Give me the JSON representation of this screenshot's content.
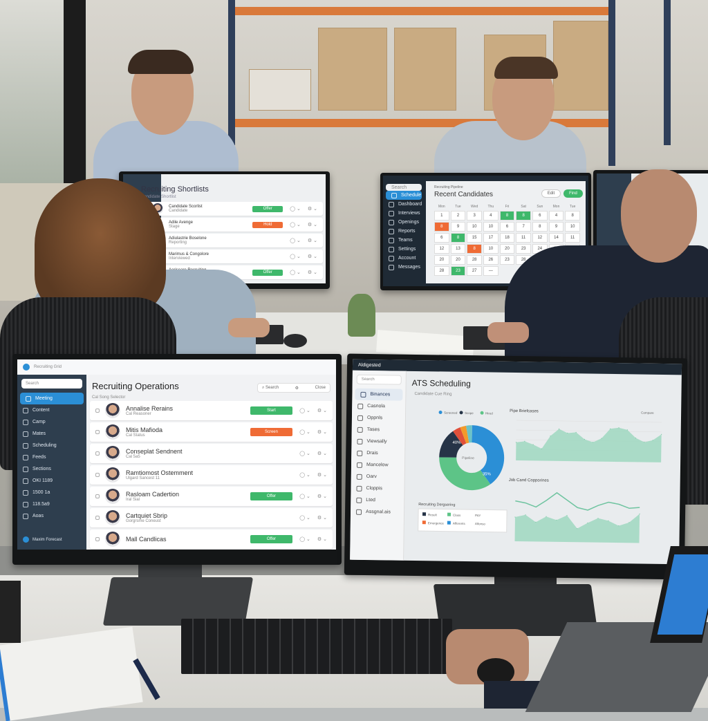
{
  "scene": {
    "colors": {
      "shelf": "#d9793a",
      "accent": "#2b8fd6",
      "green": "#3fb86b",
      "orange": "#ef6b35",
      "navy": "#2e3e4e"
    }
  },
  "front_left": {
    "app_name": "Recruiting Grid",
    "search_placeholder": "Search",
    "nav": [
      {
        "label": "Meeting",
        "active": true
      },
      {
        "label": "Content"
      },
      {
        "label": "Camp"
      },
      {
        "label": "Mates"
      },
      {
        "label": "Scheduling"
      },
      {
        "label": "Feeds"
      },
      {
        "label": "Sections"
      },
      {
        "label": "OKI 1189"
      },
      {
        "label": "1500 1a"
      },
      {
        "label": "118.5a9"
      },
      {
        "label": "Aoas"
      }
    ],
    "user": "Maxim Forecast",
    "title": "Recruiting Operations",
    "subtitle": "Cal Song Selector",
    "toolbar": {
      "search": "Search",
      "close": "Close"
    },
    "rows": [
      {
        "name": "Annalise Rerains",
        "sub": "Cal Reasoner",
        "status": "Start",
        "color": "green"
      },
      {
        "name": "Mitis Mafioda",
        "sub": "Cal Status",
        "status": "Screen",
        "color": "orange"
      },
      {
        "name": "Conseplat Sendnent",
        "sub": "Cal 5a5",
        "status": "",
        "color": ""
      },
      {
        "name": "Ramtiomost Ostemment",
        "sub": "Ulgard Sancest 11",
        "status": "",
        "color": ""
      },
      {
        "name": "Rasloam Cadertion",
        "sub": "Iral Sial",
        "status": "Offer",
        "color": "green"
      },
      {
        "name": "Cartquiet Sbrip",
        "sub": "Gorgrsme Coneust",
        "status": "",
        "color": ""
      },
      {
        "name": "Mall Candlicas",
        "sub": "",
        "status": "Offer",
        "color": "green"
      }
    ]
  },
  "front_right": {
    "app_name": "Aldigested",
    "search_placeholder": "Search",
    "nav": [
      {
        "label": "Binances",
        "active": true
      },
      {
        "label": "Casnola"
      },
      {
        "label": "Oppnls"
      },
      {
        "label": "Tases"
      },
      {
        "label": "Viewsally"
      },
      {
        "label": "Drais"
      },
      {
        "label": "Mancelow"
      },
      {
        "label": "Oarv"
      },
      {
        "label": "Cloppis"
      },
      {
        "label": "Lted"
      },
      {
        "label": "Assgnal.ais"
      }
    ],
    "title": "ATS Scheduling",
    "subtitle": "Candidate Cue Ring",
    "donut": {
      "legend": [
        "Screened",
        "Scope",
        "Hired"
      ],
      "center": "Pipeline",
      "labels": [
        "40%",
        "35%"
      ],
      "slices": [
        {
          "value": 40,
          "color": "#2b8fd6"
        },
        {
          "value": 35,
          "color": "#5dc487"
        },
        {
          "value": 15,
          "color": "#263447"
        },
        {
          "value": 4,
          "color": "#e0503a"
        },
        {
          "value": 3,
          "color": "#f39a2b"
        },
        {
          "value": 3,
          "color": "#6cc3c8"
        }
      ]
    },
    "chart1": {
      "title": "Pipe Briefcases",
      "legend": "Compare",
      "values": [
        45,
        48,
        40,
        30,
        62,
        80,
        70,
        72,
        55,
        48,
        58,
        82,
        85,
        80,
        60,
        50,
        55,
        70
      ]
    },
    "chart2": {
      "title": "Job Cand Copporines",
      "line": [
        62,
        58,
        50,
        64,
        80,
        65,
        50,
        45,
        55,
        62,
        58,
        50,
        52
      ],
      "area": [
        50,
        55,
        40,
        52,
        45,
        55,
        28,
        40,
        50,
        45,
        35,
        42,
        60
      ]
    },
    "legend_box": {
      "title": "Recruiting Dergsering",
      "items": [
        "Result",
        "Class",
        "Emergence",
        "Afferents"
      ],
      "col3": [
        "PAY",
        "Alfonso"
      ]
    }
  },
  "back_left": {
    "title": "Recruiting Shortlists",
    "subtitle": "Candidate Shortlist",
    "rows": [
      {
        "name": "Candidate Scorlist",
        "sub": "Candidate",
        "status": "Offer",
        "color": "green"
      },
      {
        "name": "Adile Avenge",
        "sub": "Stage",
        "status": "Hold",
        "color": "orange"
      },
      {
        "name": "Adiulastrie Boselone",
        "sub": "Reporting",
        "status": "",
        "color": ""
      },
      {
        "name": "Marimus & Congolore",
        "sub": "Interviewed",
        "status": "",
        "color": ""
      },
      {
        "name": "Aeriseare Recruiting",
        "sub": "Reviewed",
        "status": "Offer",
        "color": "green"
      }
    ]
  },
  "back_right": {
    "title": "Recent Candidates",
    "small": "Recruiting Pipeline",
    "btn1": "Edit",
    "btn2": "Find",
    "search_placeholder": "Search",
    "nav": [
      {
        "label": "Schedule",
        "active": true
      },
      {
        "label": "Dashboard"
      },
      {
        "label": "Interviews"
      },
      {
        "label": "Openings"
      },
      {
        "label": "Reports"
      },
      {
        "label": "Teams"
      },
      {
        "label": "Settings"
      },
      {
        "label": "Account"
      },
      {
        "label": "Messages"
      }
    ],
    "weekdays": [
      "Mon",
      "Tue",
      "Wed",
      "Thu",
      "Fri",
      "Sat",
      "Sun",
      "Mon",
      "Tue"
    ],
    "days": [
      {
        "d": "1"
      },
      {
        "d": "2"
      },
      {
        "d": "3"
      },
      {
        "d": "4"
      },
      {
        "d": "8",
        "s": "g"
      },
      {
        "d": "8",
        "s": "g"
      },
      {
        "d": "6"
      },
      {
        "d": "4"
      },
      {
        "d": "8"
      },
      {
        "d": "8",
        "s": "o"
      },
      {
        "d": "9"
      },
      {
        "d": "10"
      },
      {
        "d": "10"
      },
      {
        "d": "6"
      },
      {
        "d": "7"
      },
      {
        "d": "8"
      },
      {
        "d": "9"
      },
      {
        "d": "10"
      },
      {
        "d": "6"
      },
      {
        "d": "8",
        "s": "g"
      },
      {
        "d": "15"
      },
      {
        "d": "17"
      },
      {
        "d": "18"
      },
      {
        "d": "11"
      },
      {
        "d": "12"
      },
      {
        "d": "14"
      },
      {
        "d": "11"
      },
      {
        "d": "12"
      },
      {
        "d": "13"
      },
      {
        "d": "8",
        "s": "o"
      },
      {
        "d": "10"
      },
      {
        "d": "20"
      },
      {
        "d": "23"
      },
      {
        "d": "24"
      },
      {
        "d": "27"
      },
      {
        "d": "28"
      },
      {
        "d": "20"
      },
      {
        "d": "20"
      },
      {
        "d": "28"
      },
      {
        "d": "26"
      },
      {
        "d": "23"
      },
      {
        "d": "28"
      },
      {
        "d": ""
      },
      {
        "d": ""
      },
      {
        "d": ""
      },
      {
        "d": "28"
      },
      {
        "d": "23",
        "s": "g"
      },
      {
        "d": "27"
      },
      {
        "d": "—"
      }
    ]
  }
}
